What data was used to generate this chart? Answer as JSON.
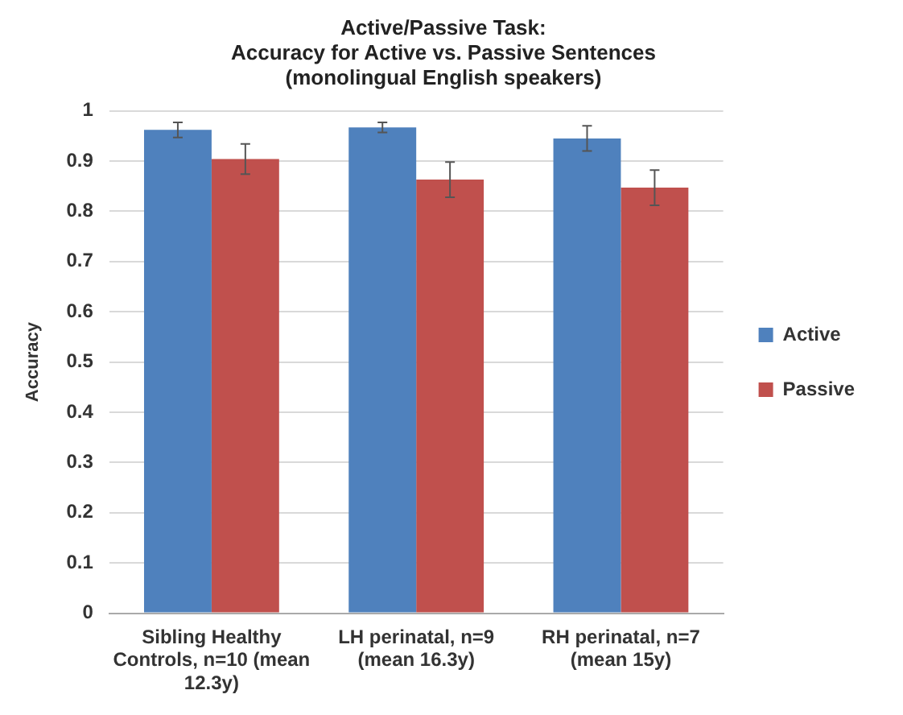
{
  "chart_data": {
    "type": "bar",
    "title": "Active/Passive Task:\nAccuracy for Active vs. Passive Sentences\n(monolingual English speakers)",
    "ylabel": "Accuracy",
    "categories": [
      "Sibling Healthy Controls, n=10 (mean 12.3y)",
      "LH perinatal, n=9 (mean 16.3y)",
      "RH perinatal, n=7 (mean 15y)"
    ],
    "series": [
      {
        "name": "Active",
        "color": "#4f81bd",
        "values": [
          0.962,
          0.967,
          0.945
        ],
        "errors": [
          0.015,
          0.01,
          0.025
        ]
      },
      {
        "name": "Passive",
        "color": "#c0504d",
        "values": [
          0.904,
          0.863,
          0.847
        ],
        "errors": [
          0.03,
          0.035,
          0.035
        ]
      }
    ],
    "ylim": [
      0,
      1
    ],
    "yticks": [
      0,
      0.1,
      0.2,
      0.3,
      0.4,
      0.5,
      0.6,
      0.7,
      0.8,
      0.9,
      1
    ],
    "grid": "y",
    "legend": "right"
  }
}
